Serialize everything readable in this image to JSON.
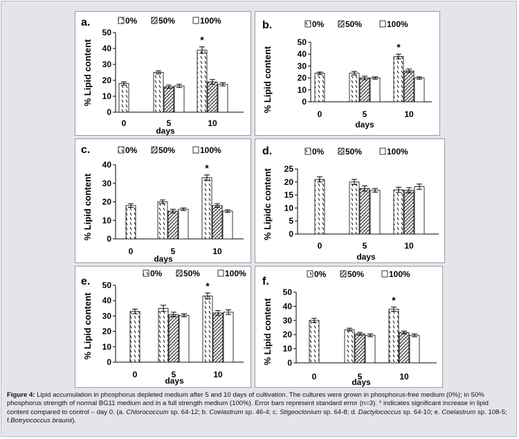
{
  "colors": {
    "frame": "#e4e4ea",
    "panel_border": "#9a9aa8",
    "bar_stroke": "#000000",
    "fill_white": "#ffffff"
  },
  "chart_data": [
    {
      "type": "bar",
      "panel": "a.",
      "categories": [
        "0",
        "5",
        "10"
      ],
      "xlabel": "days",
      "ylabel": "% Lipid content",
      "ylim": [
        0,
        50
      ],
      "yticks": [
        0,
        10,
        20,
        30,
        40,
        50
      ],
      "series": [
        {
          "name": "0%",
          "pattern": "diagonal",
          "values": [
            18,
            25,
            39
          ],
          "errors": [
            1,
            1,
            2
          ]
        },
        {
          "name": "50%",
          "pattern": "crosshatch",
          "values": [
            null,
            16,
            19
          ],
          "errors": [
            null,
            1,
            1.5
          ]
        },
        {
          "name": "100%",
          "pattern": "white",
          "values": [
            null,
            16.5,
            17.5
          ],
          "errors": [
            null,
            1,
            1
          ]
        }
      ],
      "annotations": [
        {
          "text": "*",
          "category": "10",
          "series": "0%"
        }
      ]
    },
    {
      "type": "bar",
      "panel": "b.",
      "categories": [
        "0",
        "5",
        "10"
      ],
      "xlabel": "days",
      "ylabel": "% Lipid content",
      "ylim": [
        0,
        50
      ],
      "yticks": [
        0,
        10,
        20,
        30,
        40,
        50
      ],
      "series": [
        {
          "name": "0%",
          "pattern": "diagonal",
          "values": [
            24,
            24,
            38
          ],
          "errors": [
            1,
            1.5,
            2
          ]
        },
        {
          "name": "50%",
          "pattern": "crosshatch",
          "values": [
            null,
            20,
            26
          ],
          "errors": [
            null,
            1.5,
            1.5
          ]
        },
        {
          "name": "100%",
          "pattern": "white",
          "values": [
            null,
            20,
            20
          ],
          "errors": [
            null,
            1,
            1
          ]
        }
      ],
      "annotations": [
        {
          "text": "*",
          "category": "10",
          "series": "0%"
        }
      ]
    },
    {
      "type": "bar",
      "panel": "c.",
      "categories": [
        "0",
        "5",
        "10"
      ],
      "xlabel": "days",
      "ylabel": "% Lipid content",
      "ylim": [
        0,
        40
      ],
      "yticks": [
        0,
        10,
        20,
        30,
        40
      ],
      "series": [
        {
          "name": "0%",
          "pattern": "diagonal",
          "values": [
            18,
            20,
            33
          ],
          "errors": [
            1,
            1,
            1.5
          ]
        },
        {
          "name": "50%",
          "pattern": "crosshatch",
          "values": [
            null,
            15,
            18
          ],
          "errors": [
            null,
            1,
            1
          ]
        },
        {
          "name": "100%",
          "pattern": "white",
          "values": [
            null,
            16,
            15
          ],
          "errors": [
            null,
            0.7,
            0.7
          ]
        }
      ],
      "annotations": [
        {
          "text": "*",
          "category": "10",
          "series": "0%"
        }
      ]
    },
    {
      "type": "bar",
      "panel": "d.",
      "categories": [
        "0",
        "5",
        "10"
      ],
      "xlabel": "days",
      "ylabel": "% Lipidc content",
      "ylim": [
        0,
        25
      ],
      "yticks": [
        0,
        5,
        10,
        15,
        20,
        25
      ],
      "series": [
        {
          "name": "0%",
          "pattern": "diagonal",
          "values": [
            21,
            20,
            17
          ],
          "errors": [
            1,
            1,
            1
          ]
        },
        {
          "name": "50%",
          "pattern": "crosshatch",
          "values": [
            null,
            17.5,
            16.8
          ],
          "errors": [
            null,
            1,
            1
          ]
        },
        {
          "name": "100%",
          "pattern": "white",
          "values": [
            null,
            16.8,
            18.2
          ],
          "errors": [
            null,
            0.7,
            1
          ]
        }
      ],
      "annotations": []
    },
    {
      "type": "bar",
      "panel": "e.",
      "categories": [
        "0",
        "5",
        "10"
      ],
      "xlabel": "days",
      "ylabel": "% Lipid content",
      "ylim": [
        0,
        50
      ],
      "yticks": [
        0,
        10,
        20,
        30,
        40,
        50
      ],
      "series": [
        {
          "name": "0%",
          "pattern": "diagonal",
          "values": [
            33,
            35,
            43
          ],
          "errors": [
            1.5,
            2,
            2
          ]
        },
        {
          "name": "50%",
          "pattern": "crosshatch",
          "values": [
            null,
            31,
            32
          ],
          "errors": [
            null,
            1.5,
            1.5
          ]
        },
        {
          "name": "100%",
          "pattern": "white",
          "values": [
            null,
            30.5,
            32.5
          ],
          "errors": [
            null,
            1,
            1.5
          ]
        }
      ],
      "annotations": [
        {
          "text": "*",
          "category": "10",
          "series": "0%"
        }
      ]
    },
    {
      "type": "bar",
      "panel": "f.",
      "categories": [
        "0",
        "5",
        "10"
      ],
      "xlabel": "days",
      "ylabel": "% Lipid content",
      "ylim": [
        0,
        50
      ],
      "yticks": [
        0,
        10,
        20,
        30,
        40,
        50
      ],
      "series": [
        {
          "name": "0%",
          "pattern": "diagonal",
          "values": [
            30,
            23.5,
            38
          ],
          "errors": [
            1.5,
            1,
            1.5
          ]
        },
        {
          "name": "50%",
          "pattern": "crosshatch",
          "values": [
            null,
            20.5,
            21.5
          ],
          "errors": [
            null,
            1,
            1
          ]
        },
        {
          "name": "100%",
          "pattern": "white",
          "values": [
            null,
            19.5,
            19.5
          ],
          "errors": [
            null,
            1,
            1
          ]
        }
      ],
      "annotations": [
        {
          "text": "*",
          "category": "10",
          "series": "0%"
        }
      ]
    }
  ],
  "caption": {
    "label": "Figure 4:",
    "text": "Lipid accumulation in phosphorus depleted medium after 5 and 10 days of cultivation. The cultures were grown in phosphorus-free medium (0%); in 50% phosphorus strength of normal BG11 medium and in a full strength medium (100%). Error bars represent standard error (n=3). * indicates significant increase in lipid content compared to control – day 0. (a.",
    "species": [
      {
        "name": "Chlorococcum",
        "strain": "sp. 64-12; b."
      },
      {
        "name": "Coelastrum",
        "strain": "sp. 46-4; c."
      },
      {
        "name": "Stigeoclonium",
        "strain": "sp. 64-8; d."
      },
      {
        "name": "Dactylococcus",
        "strain": "sp. 64-10; e."
      },
      {
        "name": "Coelastrum",
        "strain": "sp. 108-5; f."
      },
      {
        "name": "Botryococcus braunii",
        "strain": ")."
      }
    ]
  }
}
